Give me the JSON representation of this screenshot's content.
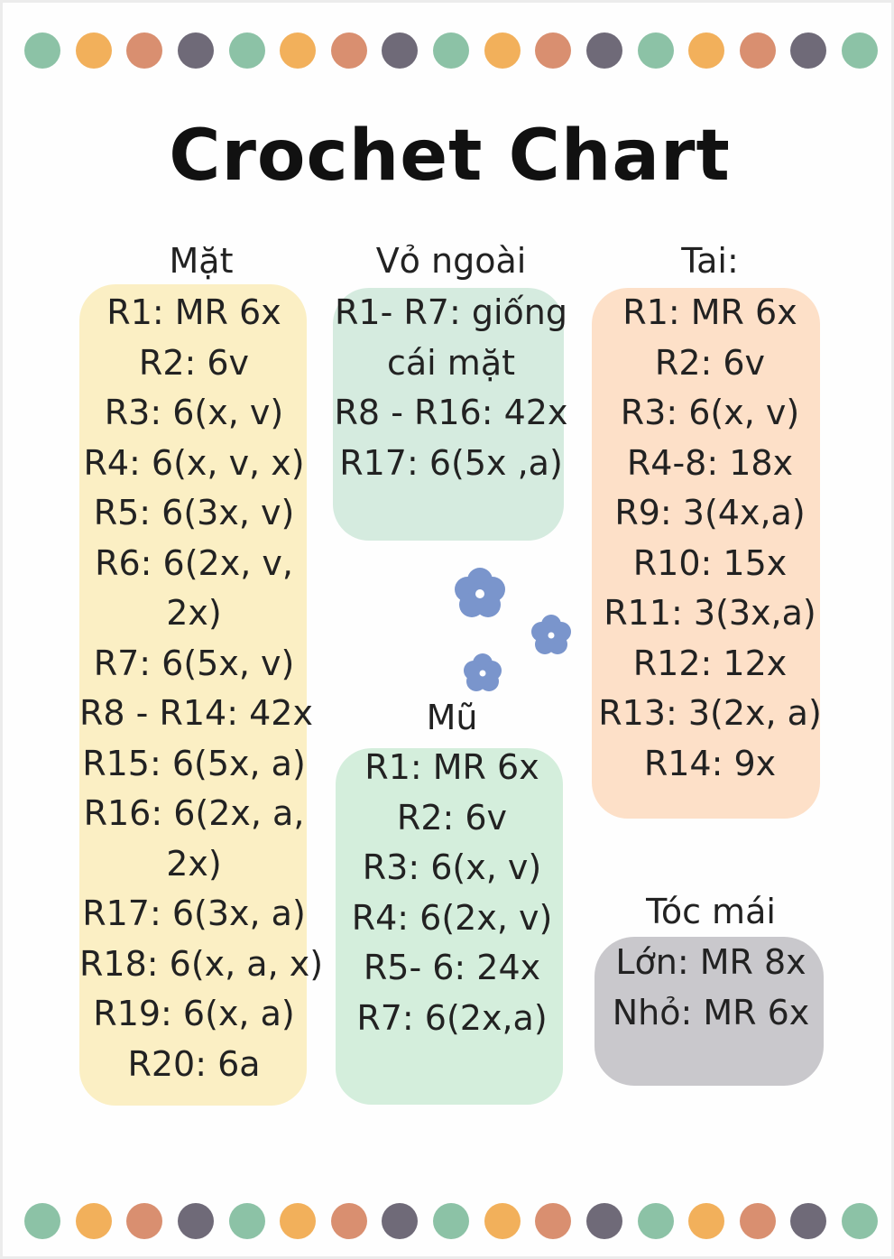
{
  "title": "Crochet Chart",
  "colors": {
    "dots": [
      "#8cc2a6",
      "#f2b05b",
      "#d98f70",
      "#6f6a78"
    ],
    "mat_panel": "#fbefc4",
    "vo_panel": "#d5ebdf",
    "mu_panel": "#d4eedc",
    "tai_panel": "#fde0c8",
    "toc_panel": "#c9c8cc",
    "flower": "#7a95cc"
  },
  "sections": {
    "mat": {
      "heading": "Mặt",
      "lines": [
        "R1: MR 6x",
        "R2: 6v",
        "R3: 6(x, v)",
        "R4: 6(x, v, x)",
        "R5: 6(3x, v)",
        "R6: 6(2x, v,",
        "2x)",
        "R7: 6(5x, v)",
        "R8 - R14: 42x",
        "R15: 6(5x, a)",
        "R16: 6(2x, a,",
        "2x)",
        "R17: 6(3x, a)",
        "R18: 6(x, a, x)",
        "R19: 6(x, a)",
        "R20: 6a"
      ]
    },
    "vo_ngoai": {
      "heading": "Vỏ ngoài",
      "lines": [
        "R1- R7: giống",
        "cái mặt",
        "R8 - R16: 42x",
        "R17: 6(5x ,a)"
      ]
    },
    "mu": {
      "heading": "Mũ",
      "lines": [
        "R1: MR 6x",
        "R2: 6v",
        "R3: 6(x, v)",
        "R4: 6(2x, v)",
        "R5- 6: 24x",
        "R7: 6(2x,a)"
      ]
    },
    "tai": {
      "heading": "Tai:",
      "lines": [
        "R1: MR 6x",
        "R2: 6v",
        "R3: 6(x, v)",
        "R4-8: 18x",
        "R9: 3(4x,a)",
        "R10: 15x",
        "R11: 3(3x,a)",
        "R12: 12x",
        "R13: 3(2x, a)",
        "R14: 9x"
      ]
    },
    "toc_mai": {
      "heading": "Tóc mái",
      "lines": [
        "Lớn: MR 8x",
        "Nhỏ: MR 6x"
      ]
    }
  },
  "icons": [
    "flower-icon",
    "flower-icon",
    "flower-icon"
  ]
}
